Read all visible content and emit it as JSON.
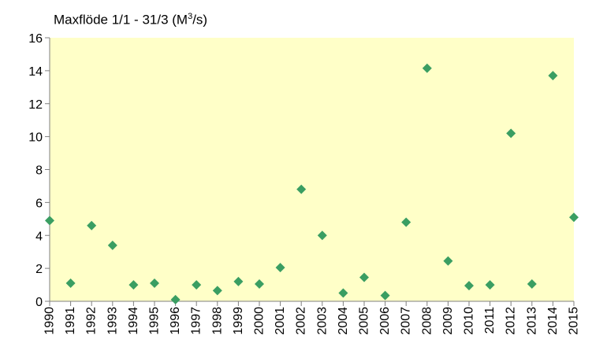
{
  "chart_data": {
    "type": "scatter",
    "title_prefix": "Maxflöde 1/1 - 31/3 (M",
    "title_sup": "3",
    "title_suffix": "/s)",
    "x": [
      "1990",
      "1991",
      "1992",
      "1993",
      "1994",
      "1995",
      "1996",
      "1997",
      "1998",
      "1999",
      "2000",
      "2001",
      "2002",
      "2003",
      "2004",
      "2005",
      "2006",
      "2007",
      "2008",
      "2009",
      "2010",
      "2011",
      "2012",
      "2013",
      "2014",
      "2015"
    ],
    "y": [
      4.9,
      1.1,
      4.6,
      3.4,
      1.0,
      1.1,
      0.1,
      1.0,
      0.65,
      1.2,
      1.05,
      2.05,
      6.8,
      4.0,
      0.5,
      1.45,
      0.35,
      4.8,
      14.15,
      2.45,
      0.95,
      1.0,
      10.2,
      1.05,
      13.7,
      5.1
    ],
    "ylim": [
      0,
      16
    ],
    "yticks": [
      "0",
      "2",
      "4",
      "6",
      "8",
      "10",
      "12",
      "14",
      "16"
    ],
    "grid": false,
    "colors": {
      "plot_background": "#FFFFC8",
      "marker": "#3A9E62",
      "axis": "#7F7F7F"
    }
  }
}
